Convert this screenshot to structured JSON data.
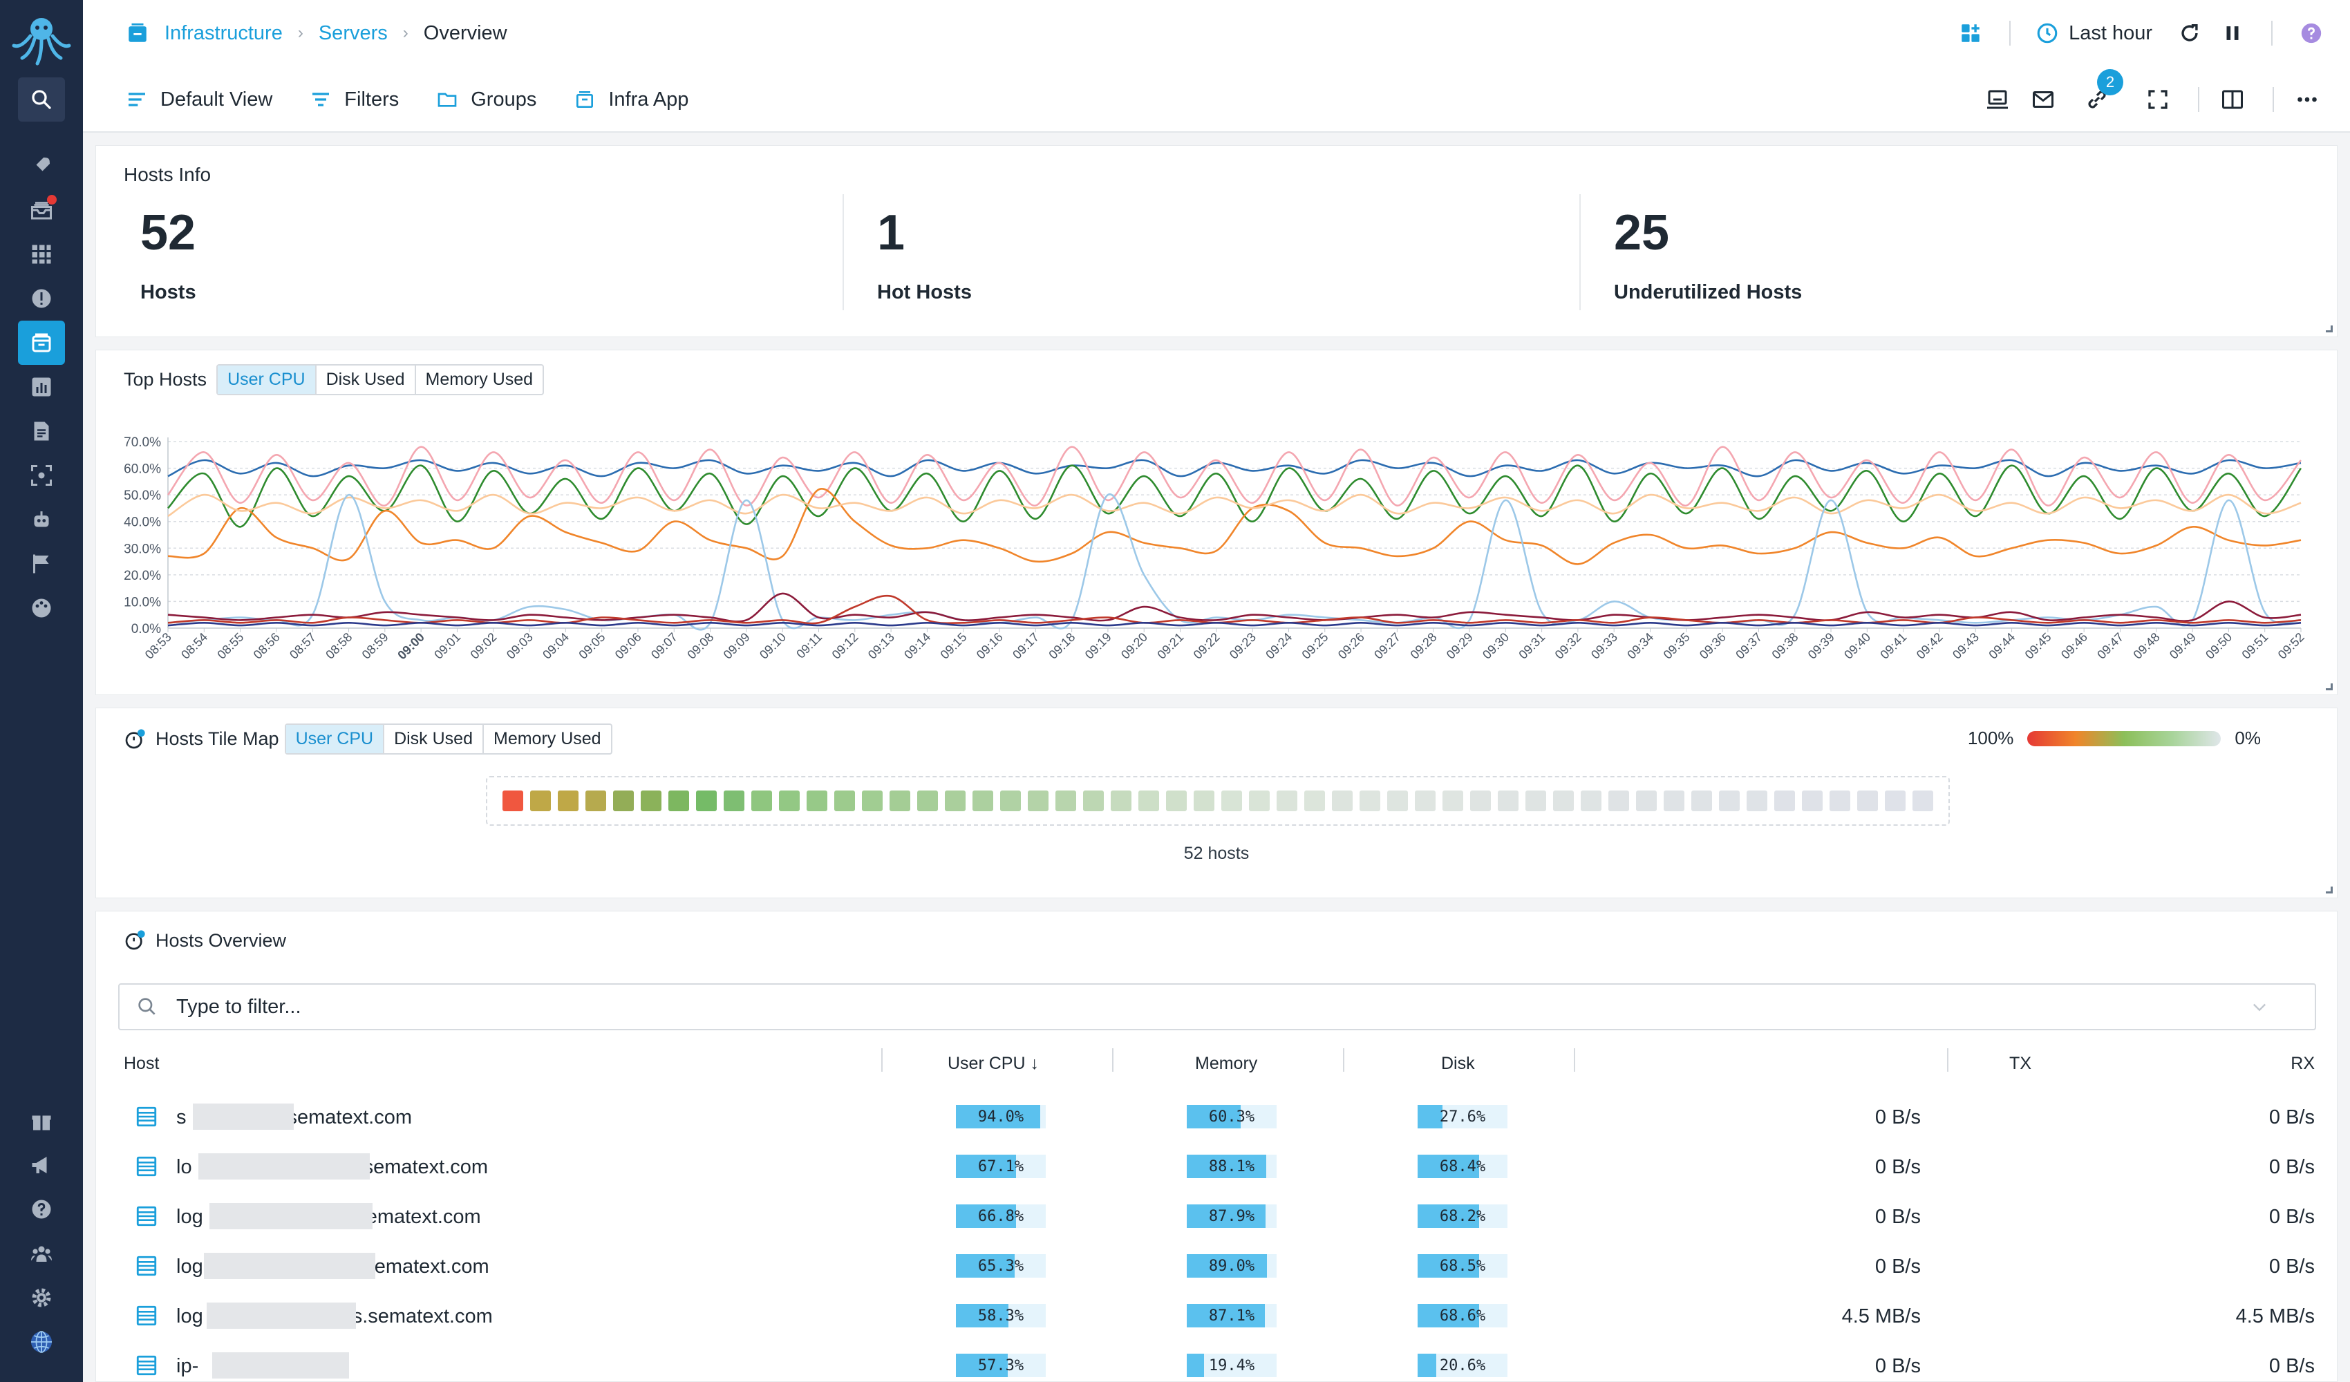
{
  "breadcrumb": {
    "root": "Infrastructure",
    "mid": "Servers",
    "current": "Overview"
  },
  "header": {
    "time_range": "Last hour",
    "notifications_count": "2"
  },
  "toolbar": {
    "default_view": "Default View",
    "filters": "Filters",
    "groups": "Groups",
    "infra_app": "Infra App"
  },
  "hosts_info": {
    "title": "Hosts Info",
    "hosts": {
      "value": "52",
      "label": "Hosts"
    },
    "hot": {
      "value": "1",
      "label": "Hot Hosts"
    },
    "under": {
      "value": "25",
      "label": "Underutilized Hosts"
    }
  },
  "top_hosts": {
    "title": "Top Hosts",
    "tabs": [
      "User CPU",
      "Disk Used",
      "Memory Used"
    ],
    "selected_tab": "User CPU"
  },
  "tile_map": {
    "title": "Hosts Tile Map",
    "tabs": [
      "User CPU",
      "Disk Used",
      "Memory Used"
    ],
    "legend_max": "100%",
    "legend_min": "0%",
    "caption": "52 hosts",
    "tile_colors": [
      "#f0573f",
      "#bfa847",
      "#bfa847",
      "#b6aa4e",
      "#93ad57",
      "#8bb25a",
      "#7db760",
      "#75bb67",
      "#7ebe72",
      "#8fc67f",
      "#93c884",
      "#97c988",
      "#9dcb8d",
      "#a1cd92",
      "#a4cd95",
      "#a6ce98",
      "#aacf9c",
      "#acd09f",
      "#b0d2a4",
      "#b4d3a8",
      "#b8d5ad",
      "#bdd7b3",
      "#c6dbbe",
      "#cddfc7",
      "#d0e0cb",
      "#d3e1cf",
      "#d8e4d6",
      "#d9e4d7",
      "#dbe4da",
      "#dce5db",
      "#dde4de",
      "#dee5df",
      "#dee5e0",
      "#dfe5e1",
      "#dfe5e1",
      "#dfe4e2",
      "#dfe4e3",
      "#dfe4e3",
      "#dfe4e3",
      "#dfe4e4",
      "#dfe3e5",
      "#dfe3e5",
      "#dfe3e6",
      "#dfe3e6",
      "#dfe3e7",
      "#dfe3e7",
      "#dfe2e8",
      "#dfe2e8",
      "#dfe2e8",
      "#dfe2e8",
      "#dfe2e9",
      "#dfe2e9"
    ]
  },
  "overview": {
    "title": "Hosts Overview",
    "filter_placeholder": "Type to filter...",
    "columns": {
      "host": "Host",
      "cpu": "User CPU ↓",
      "memory": "Memory",
      "disk": "Disk",
      "tx": "TX",
      "rx": "RX"
    },
    "rows": [
      {
        "host_a": "s",
        "host_b": "sematext.com",
        "cpu": 94.0,
        "cpu_t": "94.0%",
        "mem": 60.3,
        "mem_t": "60.3%",
        "disk": 27.6,
        "disk_t": "27.6%",
        "tx": "0 B/s",
        "rx": "0 B/s"
      },
      {
        "host_a": "lo",
        "host_b": "sematext.com",
        "cpu": 67.1,
        "cpu_t": "67.1%",
        "mem": 88.1,
        "mem_t": "88.1%",
        "disk": 68.4,
        "disk_t": "68.4%",
        "tx": "0 B/s",
        "rx": "0 B/s"
      },
      {
        "host_a": "log",
        "host_b": "ematext.com",
        "cpu": 66.8,
        "cpu_t": "66.8%",
        "mem": 87.9,
        "mem_t": "87.9%",
        "disk": 68.2,
        "disk_t": "68.2%",
        "tx": "0 B/s",
        "rx": "0 B/s"
      },
      {
        "host_a": "log",
        "host_b": "ematext.com",
        "cpu": 65.3,
        "cpu_t": "65.3%",
        "mem": 89.0,
        "mem_t": "89.0%",
        "disk": 68.5,
        "disk_t": "68.5%",
        "tx": "0 B/s",
        "rx": "0 B/s"
      },
      {
        "host_a": "log",
        "host_b": "s.sematext.com",
        "cpu": 58.3,
        "cpu_t": "58.3%",
        "mem": 87.1,
        "mem_t": "87.1%",
        "disk": 68.6,
        "disk_t": "68.6%",
        "tx": "4.5 MB/s",
        "rx": "4.5 MB/s"
      },
      {
        "host_a": "ip-",
        "host_b": "",
        "cpu": 57.3,
        "cpu_t": "57.3%",
        "mem": 19.4,
        "mem_t": "19.4%",
        "disk": 20.6,
        "disk_t": "20.6%",
        "tx": "0 B/s",
        "rx": "0 B/s"
      }
    ]
  },
  "chart_data": {
    "type": "line",
    "ylim": [
      0,
      70
    ],
    "y_ticks": [
      "0.0%",
      "10.0%",
      "20.0%",
      "30.0%",
      "40.0%",
      "50.0%",
      "60.0%",
      "70.0%"
    ],
    "x": [
      "08:53",
      "08:54",
      "08:55",
      "08:56",
      "08:57",
      "08:58",
      "08:59",
      "09:00",
      "09:01",
      "09:02",
      "09:03",
      "09:04",
      "09:05",
      "09:06",
      "09:07",
      "09:08",
      "09:09",
      "09:10",
      "09:11",
      "09:12",
      "09:13",
      "09:14",
      "09:15",
      "09:16",
      "09:17",
      "09:18",
      "09:19",
      "09:20",
      "09:21",
      "09:22",
      "09:23",
      "09:24",
      "09:25",
      "09:26",
      "09:27",
      "09:28",
      "09:29",
      "09:30",
      "09:31",
      "09:32",
      "09:33",
      "09:34",
      "09:35",
      "09:36",
      "09:37",
      "09:38",
      "09:39",
      "09:40",
      "09:41",
      "09:42",
      "09:43",
      "09:44",
      "09:45",
      "09:46",
      "09:47",
      "09:48",
      "09:49",
      "09:50",
      "09:51",
      "09:52"
    ],
    "series": [
      {
        "color": "#2b6cb0",
        "values": [
          57,
          63,
          58,
          62,
          57,
          61,
          60,
          63,
          59,
          62,
          58,
          61,
          57,
          62,
          60,
          63,
          58,
          61,
          59,
          62,
          57,
          63,
          59,
          62,
          58,
          61,
          60,
          63,
          57,
          62,
          59,
          61,
          58,
          63,
          60,
          62,
          57,
          61,
          59,
          63,
          58,
          62,
          60,
          61,
          57,
          63,
          59,
          62,
          58,
          61,
          60,
          63,
          57,
          62,
          59,
          61,
          58,
          63,
          60,
          62
        ]
      },
      {
        "color": "#f4a6b0",
        "values": [
          50,
          66,
          47,
          65,
          48,
          62,
          46,
          68,
          48,
          66,
          49,
          63,
          47,
          66,
          48,
          67,
          46,
          64,
          49,
          66,
          47,
          65,
          48,
          62,
          46,
          68,
          48,
          66,
          49,
          63,
          47,
          66,
          48,
          67,
          46,
          64,
          49,
          66,
          47,
          65,
          48,
          62,
          46,
          68,
          48,
          66,
          49,
          63,
          47,
          66,
          48,
          67,
          46,
          64,
          49,
          66,
          47,
          65,
          48,
          63
        ]
      },
      {
        "color": "#2e8b2e",
        "values": [
          45,
          58,
          38,
          60,
          42,
          57,
          44,
          61,
          40,
          59,
          43,
          56,
          41,
          60,
          44,
          58,
          39,
          57,
          42,
          60,
          44,
          58,
          40,
          59,
          41,
          61,
          43,
          57,
          42,
          58,
          40,
          60,
          44,
          56,
          41,
          59,
          43,
          57,
          42,
          61,
          40,
          58,
          43,
          60,
          41,
          57,
          44,
          59,
          40,
          58,
          42,
          61,
          43,
          57,
          41,
          60,
          44,
          58,
          42,
          60
        ]
      },
      {
        "color": "#f0852a",
        "values": [
          27,
          28,
          45,
          34,
          30,
          26,
          44,
          32,
          33,
          30,
          42,
          36,
          32,
          29,
          40,
          33,
          30,
          27,
          52,
          40,
          31,
          30,
          33,
          30,
          25,
          28,
          36,
          32,
          30,
          29,
          45,
          44,
          32,
          30,
          27,
          30,
          40,
          33,
          31,
          24,
          32,
          35,
          30,
          31,
          28,
          30,
          36,
          32,
          30,
          34,
          27,
          30,
          33,
          32,
          28,
          31,
          38,
          33,
          31,
          33
        ]
      },
      {
        "color": "#fbc99a",
        "values": [
          42,
          50,
          44,
          47,
          43,
          49,
          45,
          48,
          44,
          50,
          43,
          47,
          45,
          49,
          44,
          48,
          43,
          50,
          45,
          47,
          44,
          49,
          43,
          48,
          45,
          50,
          44,
          47,
          43,
          49,
          45,
          48,
          44,
          50,
          43,
          47,
          45,
          49,
          44,
          48,
          43,
          50,
          45,
          47,
          44,
          49,
          43,
          48,
          45,
          50,
          44,
          47,
          43,
          49,
          45,
          48,
          44,
          50,
          43,
          47
        ]
      },
      {
        "color": "#9cc8e8",
        "values": [
          2,
          3,
          4,
          3,
          5,
          50,
          10,
          3,
          4,
          3,
          8,
          7,
          3,
          4,
          5,
          2,
          48,
          3,
          4,
          3,
          5,
          6,
          3,
          2,
          4,
          3,
          50,
          20,
          3,
          4,
          3,
          5,
          4,
          3,
          2,
          4,
          3,
          48,
          6,
          3,
          10,
          4,
          3,
          2,
          3,
          5,
          48,
          6,
          4,
          3,
          2,
          3,
          4,
          3,
          5,
          8,
          3,
          48,
          6,
          3
        ]
      },
      {
        "color": "#8b1a3a",
        "values": [
          5,
          4,
          3,
          4,
          5,
          4,
          6,
          5,
          4,
          3,
          5,
          4,
          3,
          4,
          5,
          4,
          3,
          13,
          4,
          5,
          4,
          6,
          3,
          4,
          5,
          4,
          3,
          8,
          4,
          3,
          5,
          4,
          3,
          4,
          5,
          4,
          6,
          5,
          4,
          3,
          5,
          4,
          3,
          4,
          5,
          4,
          3,
          6,
          4,
          5,
          4,
          6,
          3,
          4,
          5,
          4,
          3,
          10,
          4,
          5
        ]
      },
      {
        "color": "#c0392b",
        "values": [
          2,
          3,
          2,
          3,
          2,
          4,
          3,
          2,
          3,
          2,
          3,
          2,
          4,
          3,
          2,
          3,
          2,
          3,
          2,
          8,
          12,
          3,
          2,
          3,
          2,
          3,
          4,
          2,
          3,
          2,
          3,
          2,
          3,
          4,
          2,
          3,
          2,
          3,
          2,
          3,
          2,
          4,
          3,
          2,
          3,
          2,
          3,
          2,
          3,
          2,
          4,
          3,
          2,
          3,
          2,
          3,
          2,
          3,
          2,
          3
        ]
      },
      {
        "color": "#2b3a8b",
        "values": [
          1,
          2,
          1,
          2,
          1,
          2,
          1,
          2,
          1,
          2,
          1,
          2,
          1,
          2,
          1,
          2,
          1,
          2,
          1,
          2,
          1,
          2,
          1,
          2,
          1,
          2,
          1,
          2,
          1,
          2,
          1,
          2,
          1,
          2,
          1,
          2,
          1,
          2,
          1,
          2,
          1,
          2,
          1,
          2,
          1,
          2,
          1,
          2,
          1,
          2,
          1,
          2,
          1,
          2,
          1,
          2,
          1,
          2,
          1,
          2
        ]
      }
    ]
  }
}
